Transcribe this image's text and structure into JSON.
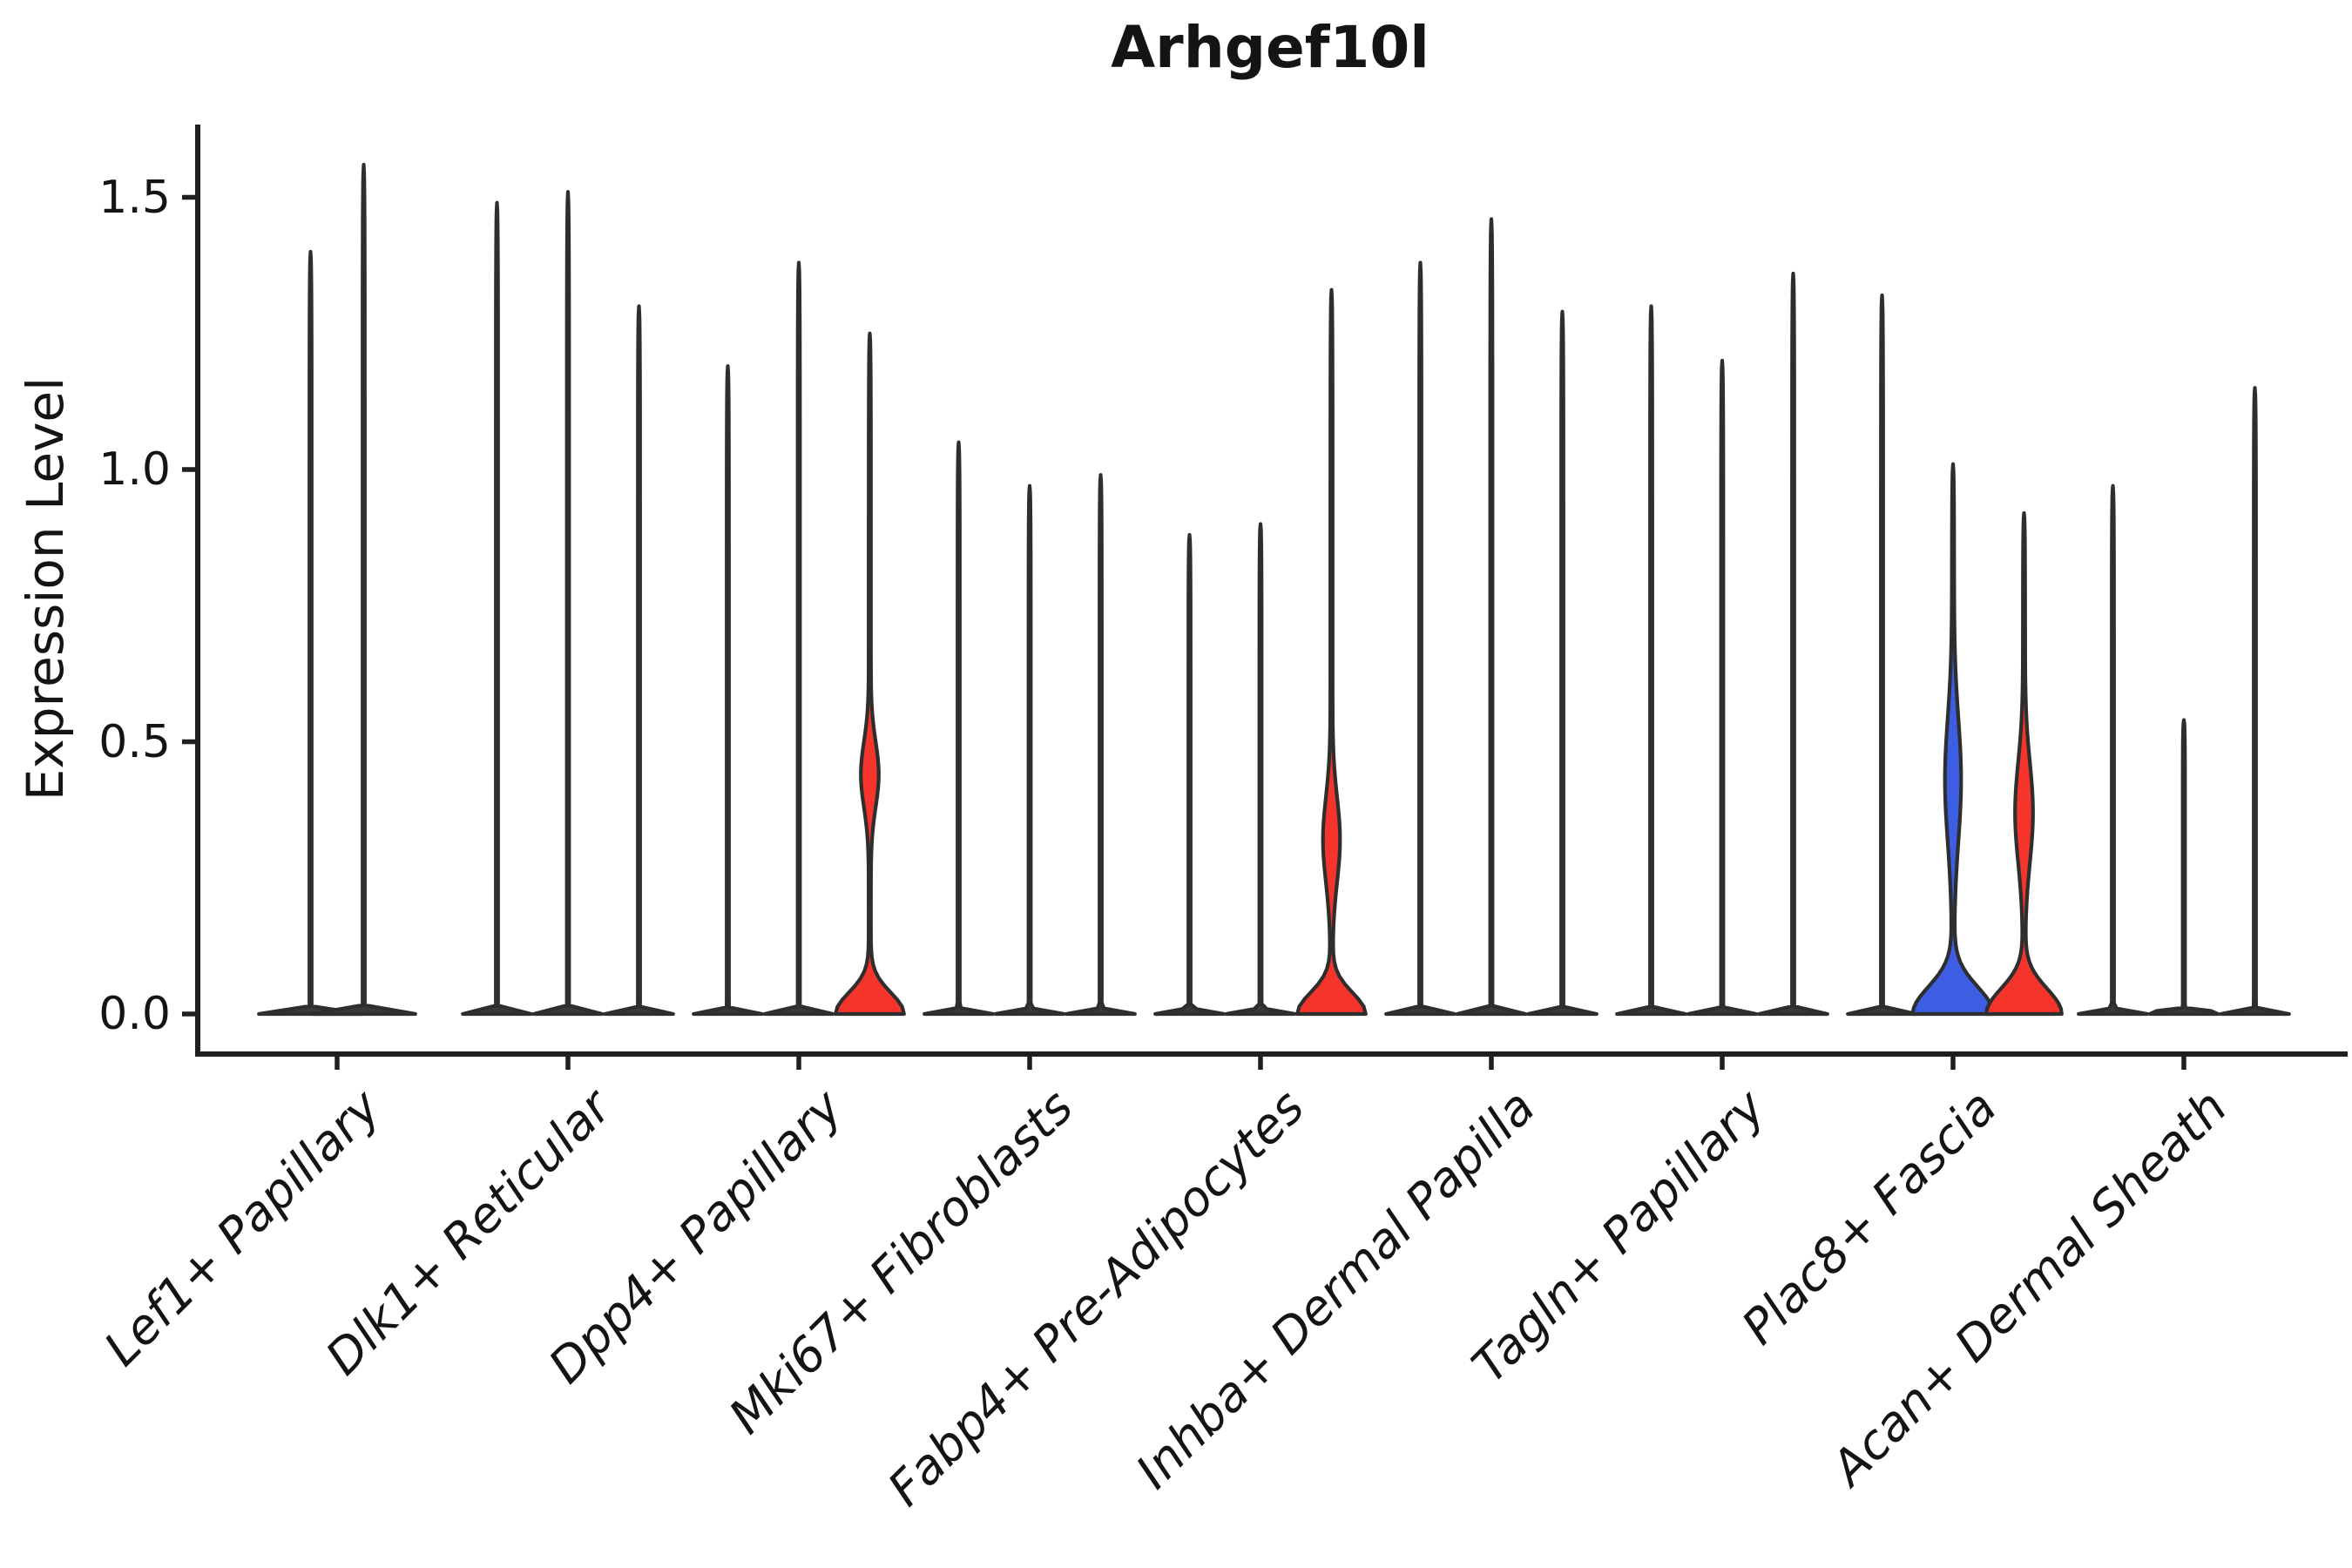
{
  "figure": {
    "title": "Arhgef10l"
  },
  "y_axis": {
    "label": "Expression Level",
    "tick_labels": [
      "0.0",
      "0.5",
      "1.0",
      "1.5"
    ]
  },
  "x_axis": {
    "tick_labels": [
      "Lef1+ Papillary",
      "Dlk1+ Reticular",
      "Dpp4+ Papillary",
      "Mki67+ Fibroblasts",
      "Fabp4+ Pre-Adipocytes",
      "Inhba+ Dermal Papilla",
      "Tagln+ Papillary",
      "Plac8+ Fascia",
      "Acan+ Dermal Sheath"
    ]
  },
  "colors": {
    "background": "#ffffff",
    "text": "#141414",
    "axis": "#1f1f1f",
    "violin_outline": "#2e2e2e",
    "violin_dark_fill": "#3a3a3a",
    "red": "#f5342b",
    "blue": "#3d5de2"
  },
  "chart_data": {
    "type": "violin",
    "title": "Arhgef10l",
    "xlabel": "",
    "ylabel": "Expression Level",
    "yticks": [
      0.0,
      0.5,
      1.0,
      1.5
    ],
    "ylim": [
      -0.07,
      1.63
    ],
    "grid": false,
    "legend": "none",
    "categories": [
      "Lef1+ Papillary",
      "Dlk1+ Reticular",
      "Dpp4+ Papillary",
      "Mki67+ Fibroblasts",
      "Fabp4+ Pre-Adipocytes",
      "Inhba+ Dermal Papilla",
      "Tagln+ Papillary",
      "Plac8+ Fascia",
      "Acan+ Dermal Sheath"
    ],
    "groups": [
      {
        "category": "Lef1+ Papillary",
        "violins": [
          {
            "max": 1.4,
            "color": "dark",
            "shape": "spike"
          },
          {
            "max": 1.56,
            "color": "dark",
            "shape": "spike"
          }
        ]
      },
      {
        "category": "Dlk1+ Reticular",
        "violins": [
          {
            "max": 1.49,
            "color": "dark",
            "shape": "spike"
          },
          {
            "max": 1.51,
            "color": "dark",
            "shape": "spike"
          },
          {
            "max": 1.3,
            "color": "dark",
            "shape": "spike"
          }
        ]
      },
      {
        "category": "Dpp4+ Papillary",
        "violins": [
          {
            "max": 1.19,
            "color": "dark",
            "shape": "spike"
          },
          {
            "max": 1.38,
            "color": "dark",
            "shape": "spike"
          },
          {
            "max": 1.25,
            "color": "red",
            "shape": "body",
            "bulges": [
              {
                "center": 0.44,
                "sigma": 0.085,
                "halfwidth": 9
              }
            ],
            "base": {
              "halfwidth": 38,
              "sigma": 0.055
            }
          }
        ]
      },
      {
        "category": "Mki67+ Fibroblasts",
        "violins": [
          {
            "max": 1.05,
            "color": "dark",
            "shape": "spike"
          },
          {
            "max": 0.97,
            "color": "dark",
            "shape": "spike"
          },
          {
            "max": 0.99,
            "color": "dark",
            "shape": "spike"
          }
        ]
      },
      {
        "category": "Fabp4+ Pre-Adipocytes",
        "violins": [
          {
            "max": 0.88,
            "color": "dark",
            "shape": "spike"
          },
          {
            "max": 0.9,
            "color": "dark",
            "shape": "spike"
          },
          {
            "max": 1.33,
            "color": "red",
            "shape": "body",
            "bulges": [
              {
                "center": 0.32,
                "sigma": 0.11,
                "halfwidth": 8.5
              }
            ],
            "base": {
              "halfwidth": 38,
              "sigma": 0.055
            }
          }
        ]
      },
      {
        "category": "Inhba+ Dermal Papilla",
        "violins": [
          {
            "max": 1.38,
            "color": "dark",
            "shape": "spike"
          },
          {
            "max": 1.46,
            "color": "dark",
            "shape": "spike"
          },
          {
            "max": 1.29,
            "color": "dark",
            "shape": "spike"
          }
        ]
      },
      {
        "category": "Tagln+ Papillary",
        "violins": [
          {
            "max": 1.3,
            "color": "dark",
            "shape": "spike"
          },
          {
            "max": 1.2,
            "color": "dark",
            "shape": "spike"
          },
          {
            "max": 1.36,
            "color": "dark",
            "shape": "spike"
          }
        ]
      },
      {
        "category": "Plac8+ Fascia",
        "violins": [
          {
            "max": 1.32,
            "color": "dark",
            "shape": "spike"
          },
          {
            "max": 1.01,
            "color": "blue",
            "shape": "body",
            "bulges": [
              {
                "center": 0.43,
                "sigma": 0.16,
                "halfwidth": 8
              }
            ],
            "base": {
              "halfwidth": 45,
              "sigma": 0.07
            }
          },
          {
            "max": 0.92,
            "color": "red",
            "shape": "body",
            "bulges": [
              {
                "center": 0.37,
                "sigma": 0.13,
                "halfwidth": 9
              }
            ],
            "base": {
              "halfwidth": 42,
              "sigma": 0.065
            }
          }
        ]
      },
      {
        "category": "Acan+ Dermal Sheath",
        "violins": [
          {
            "max": 0.97,
            "color": "dark",
            "shape": "spike"
          },
          {
            "max": 0.54,
            "color": "dark",
            "shape": "spike"
          },
          {
            "max": 1.15,
            "color": "dark",
            "shape": "spike"
          }
        ]
      }
    ]
  }
}
